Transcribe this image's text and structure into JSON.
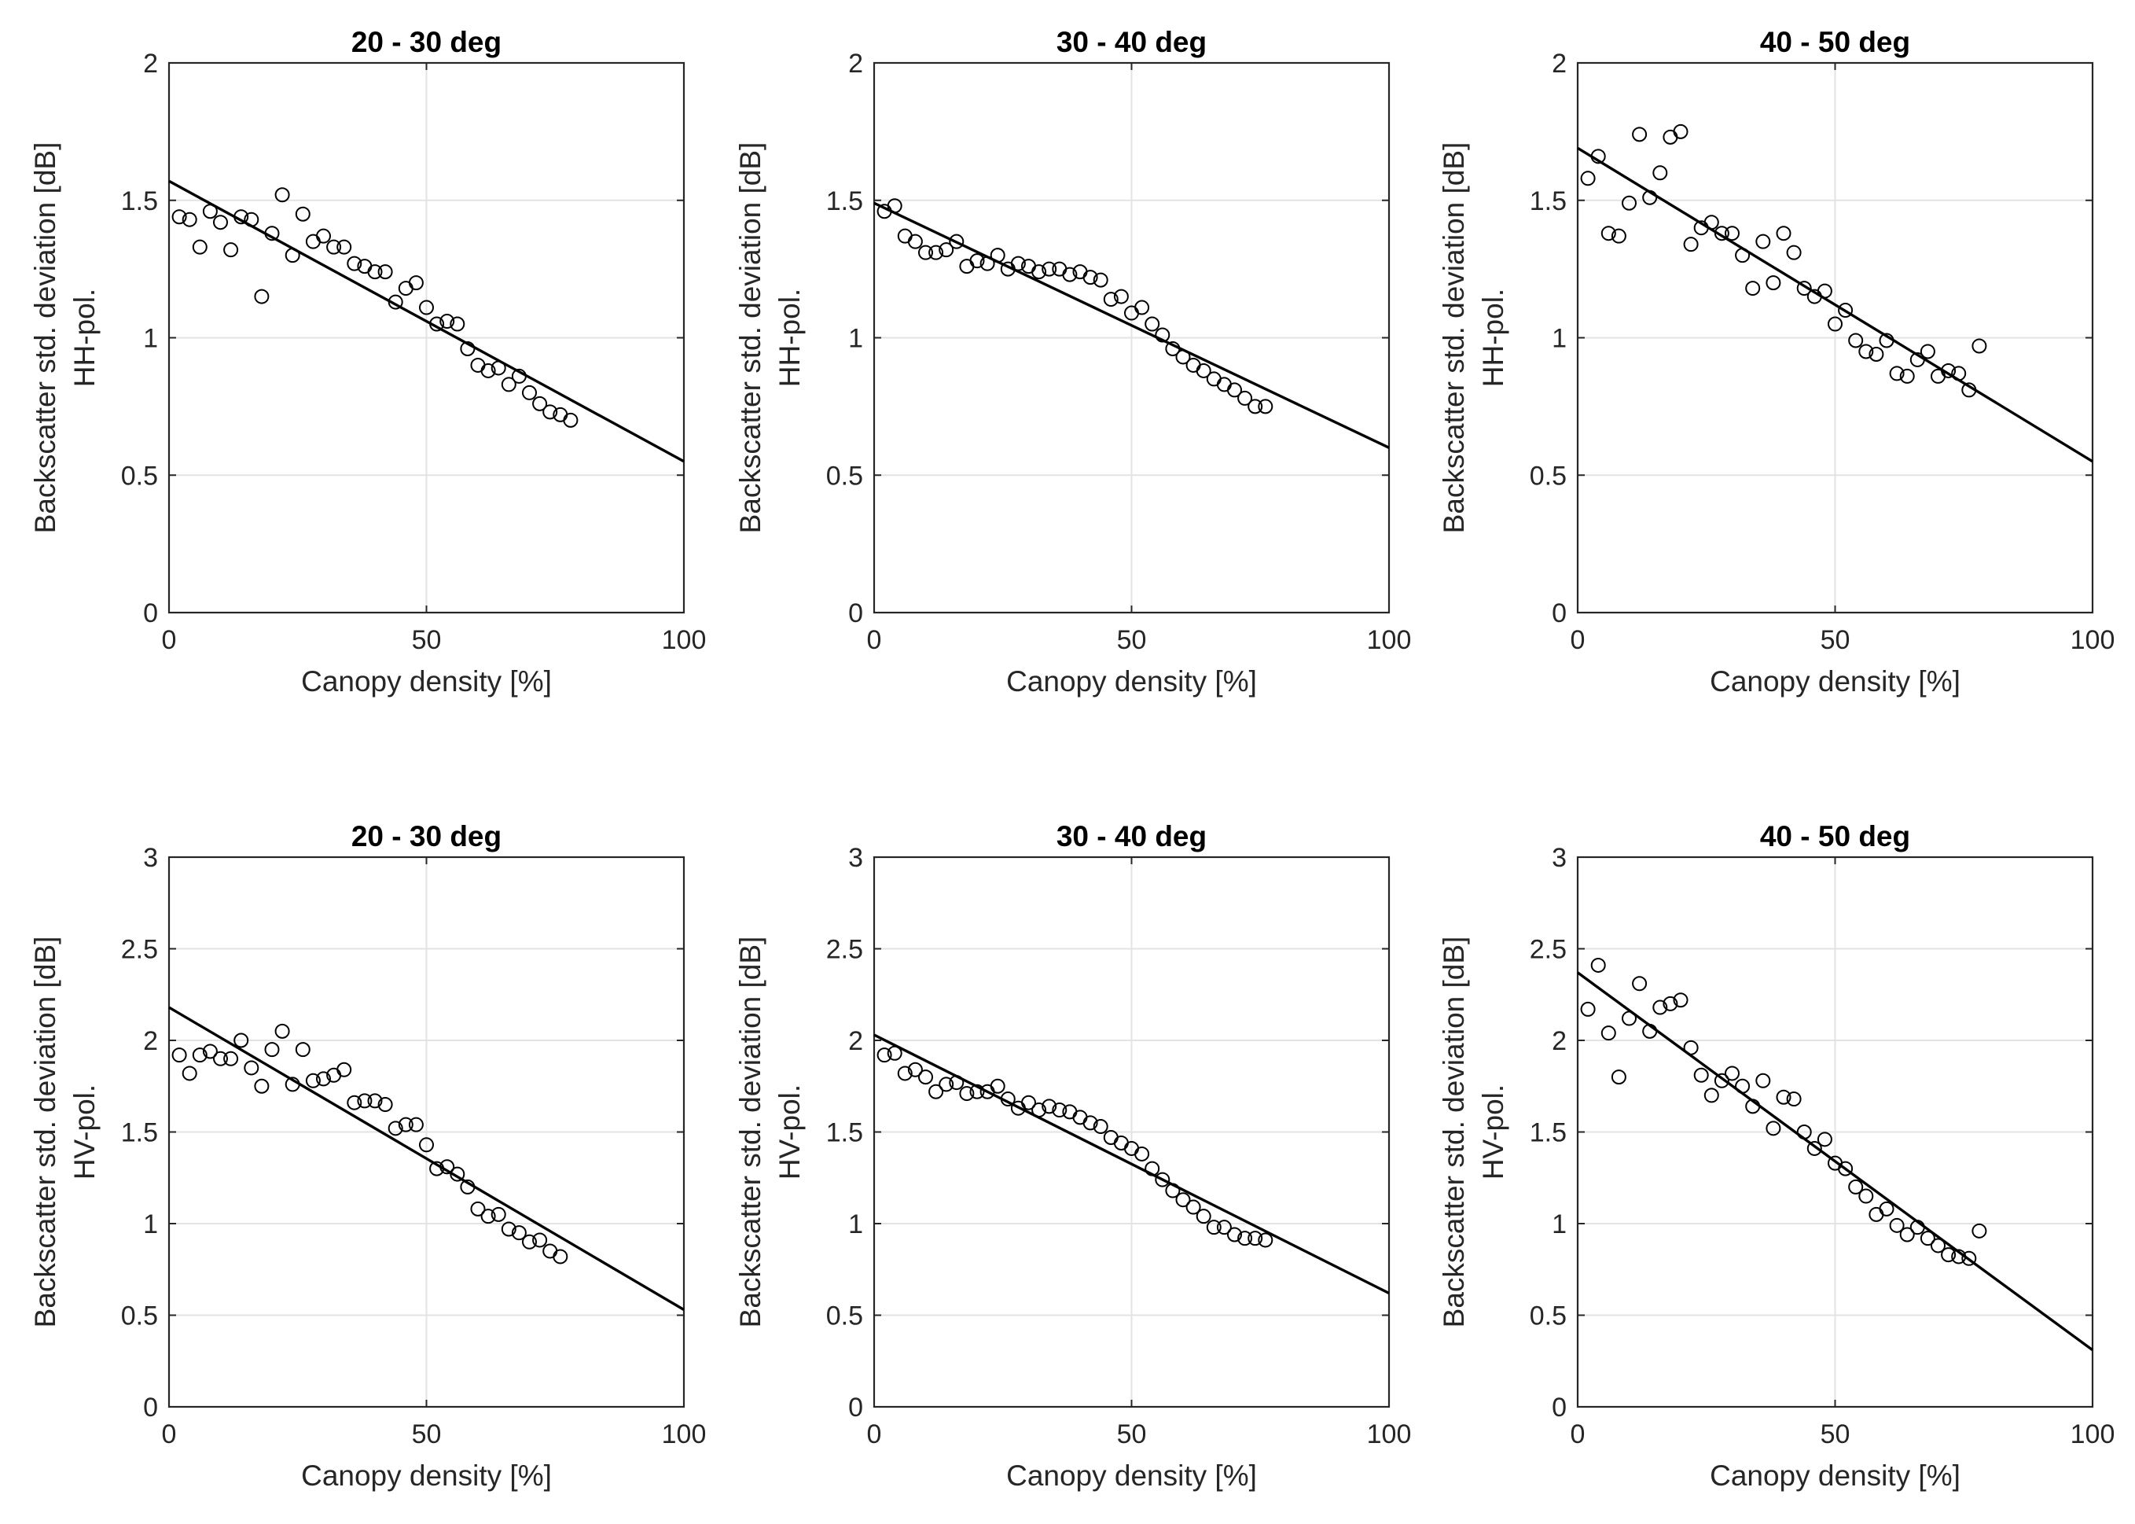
{
  "chart_data": [
    {
      "type": "scatter",
      "title": "20 - 30 deg",
      "xlabel": "Canopy density [%]",
      "ylabel": [
        "Backscatter std. deviation [dB]",
        "HH-pol."
      ],
      "xlim": [
        0,
        100
      ],
      "ylim": [
        0,
        2
      ],
      "xticks": [
        "0",
        "50",
        "100"
      ],
      "yticks": [
        "0",
        "0.5",
        "1",
        "1.5",
        "2"
      ],
      "grid": true,
      "fit_line": {
        "x": [
          0,
          100
        ],
        "y": [
          1.57,
          0.55
        ]
      },
      "x": [
        2,
        4,
        6,
        8,
        10,
        12,
        14,
        16,
        18,
        20,
        22,
        24,
        26,
        28,
        30,
        32,
        34,
        36,
        38,
        40,
        42,
        44,
        46,
        48,
        50,
        52,
        54,
        56,
        58,
        60,
        62,
        64,
        66,
        68,
        70,
        72,
        74,
        76,
        78
      ],
      "y": [
        1.44,
        1.43,
        1.33,
        1.46,
        1.42,
        1.32,
        1.44,
        1.43,
        1.15,
        1.38,
        1.52,
        1.3,
        1.45,
        1.35,
        1.37,
        1.33,
        1.33,
        1.27,
        1.26,
        1.24,
        1.24,
        1.13,
        1.18,
        1.2,
        1.11,
        1.05,
        1.06,
        1.05,
        0.96,
        0.9,
        0.88,
        0.89,
        0.83,
        0.86,
        0.8,
        0.76,
        0.73,
        0.72,
        0.7
      ]
    },
    {
      "type": "scatter",
      "title": "30 - 40 deg",
      "xlabel": "Canopy density [%]",
      "ylabel": [
        "Backscatter std. deviation [dB]",
        "HH-pol."
      ],
      "xlim": [
        0,
        100
      ],
      "ylim": [
        0,
        2
      ],
      "xticks": [
        "0",
        "50",
        "100"
      ],
      "yticks": [
        "0",
        "0.5",
        "1",
        "1.5",
        "2"
      ],
      "grid": true,
      "fit_line": {
        "x": [
          0,
          100
        ],
        "y": [
          1.49,
          0.6
        ]
      },
      "x": [
        2,
        4,
        6,
        8,
        10,
        12,
        14,
        16,
        18,
        20,
        22,
        24,
        26,
        28,
        30,
        32,
        34,
        36,
        38,
        40,
        42,
        44,
        46,
        48,
        50,
        52,
        54,
        56,
        58,
        60,
        62,
        64,
        66,
        68,
        70,
        72,
        74,
        76
      ],
      "y": [
        1.46,
        1.48,
        1.37,
        1.35,
        1.31,
        1.31,
        1.32,
        1.35,
        1.26,
        1.28,
        1.27,
        1.3,
        1.25,
        1.27,
        1.26,
        1.24,
        1.25,
        1.25,
        1.23,
        1.24,
        1.22,
        1.21,
        1.14,
        1.15,
        1.09,
        1.11,
        1.05,
        1.01,
        0.96,
        0.93,
        0.9,
        0.88,
        0.85,
        0.83,
        0.81,
        0.78,
        0.75,
        0.75
      ]
    },
    {
      "type": "scatter",
      "title": "40 - 50 deg",
      "xlabel": "Canopy density [%]",
      "ylabel": [
        "Backscatter std. deviation [dB]",
        "HH-pol."
      ],
      "xlim": [
        0,
        100
      ],
      "ylim": [
        0,
        2
      ],
      "xticks": [
        "0",
        "50",
        "100"
      ],
      "yticks": [
        "0",
        "0.5",
        "1",
        "1.5",
        "2"
      ],
      "grid": true,
      "fit_line": {
        "x": [
          0,
          100
        ],
        "y": [
          1.69,
          0.55
        ]
      },
      "x": [
        2,
        4,
        6,
        8,
        10,
        12,
        14,
        16,
        18,
        20,
        22,
        24,
        26,
        28,
        30,
        32,
        34,
        36,
        38,
        40,
        42,
        44,
        46,
        48,
        50,
        52,
        54,
        56,
        58,
        60,
        62,
        64,
        66,
        68,
        70,
        72,
        74,
        76,
        78
      ],
      "y": [
        1.58,
        1.66,
        1.38,
        1.37,
        1.49,
        1.74,
        1.51,
        1.6,
        1.73,
        1.75,
        1.34,
        1.4,
        1.42,
        1.38,
        1.38,
        1.3,
        1.18,
        1.35,
        1.2,
        1.38,
        1.31,
        1.18,
        1.15,
        1.17,
        1.05,
        1.1,
        0.99,
        0.95,
        0.94,
        0.99,
        0.87,
        0.86,
        0.92,
        0.95,
        0.86,
        0.88,
        0.87,
        0.81,
        0.97
      ]
    },
    {
      "type": "scatter",
      "title": "20 - 30 deg",
      "xlabel": "Canopy density [%]",
      "ylabel": [
        "Backscatter std. deviation [dB]",
        "HV-pol."
      ],
      "xlim": [
        0,
        100
      ],
      "ylim": [
        0,
        3
      ],
      "xticks": [
        "0",
        "50",
        "100"
      ],
      "yticks": [
        "0",
        "0.5",
        "1",
        "1.5",
        "2",
        "2.5",
        "3"
      ],
      "grid": true,
      "fit_line": {
        "x": [
          0,
          100
        ],
        "y": [
          2.18,
          0.53
        ]
      },
      "x": [
        2,
        4,
        6,
        8,
        10,
        12,
        14,
        16,
        18,
        20,
        22,
        24,
        26,
        28,
        30,
        32,
        34,
        36,
        38,
        40,
        42,
        44,
        46,
        48,
        50,
        52,
        54,
        56,
        58,
        60,
        62,
        64,
        66,
        68,
        70,
        72,
        74,
        76
      ],
      "y": [
        1.92,
        1.82,
        1.92,
        1.94,
        1.9,
        1.9,
        2.0,
        1.85,
        1.75,
        1.95,
        2.05,
        1.76,
        1.95,
        1.78,
        1.79,
        1.81,
        1.84,
        1.66,
        1.67,
        1.67,
        1.65,
        1.52,
        1.54,
        1.54,
        1.43,
        1.3,
        1.31,
        1.27,
        1.2,
        1.08,
        1.04,
        1.05,
        0.97,
        0.95,
        0.9,
        0.91,
        0.85,
        0.82
      ]
    },
    {
      "type": "scatter",
      "title": "30 - 40 deg",
      "xlabel": "Canopy density [%]",
      "ylabel": [
        "Backscatter std. deviation [dB]",
        "HV-pol."
      ],
      "xlim": [
        0,
        100
      ],
      "ylim": [
        0,
        3
      ],
      "xticks": [
        "0",
        "50",
        "100"
      ],
      "yticks": [
        "0",
        "0.5",
        "1",
        "1.5",
        "2",
        "2.5",
        "3"
      ],
      "grid": true,
      "fit_line": {
        "x": [
          0,
          100
        ],
        "y": [
          2.03,
          0.62
        ]
      },
      "x": [
        2,
        4,
        6,
        8,
        10,
        12,
        14,
        16,
        18,
        20,
        22,
        24,
        26,
        28,
        30,
        32,
        34,
        36,
        38,
        40,
        42,
        44,
        46,
        48,
        50,
        52,
        54,
        56,
        58,
        60,
        62,
        64,
        66,
        68,
        70,
        72,
        74,
        76
      ],
      "y": [
        1.92,
        1.93,
        1.82,
        1.84,
        1.8,
        1.72,
        1.76,
        1.77,
        1.71,
        1.72,
        1.72,
        1.75,
        1.68,
        1.63,
        1.66,
        1.62,
        1.64,
        1.62,
        1.61,
        1.58,
        1.55,
        1.53,
        1.47,
        1.44,
        1.41,
        1.38,
        1.3,
        1.24,
        1.18,
        1.13,
        1.09,
        1.04,
        0.98,
        0.98,
        0.94,
        0.92,
        0.92,
        0.91
      ]
    },
    {
      "type": "scatter",
      "title": "40 - 50 deg",
      "xlabel": "Canopy density [%]",
      "ylabel": [
        "Backscatter std. deviation [dB]",
        "HV-pol."
      ],
      "xlim": [
        0,
        100
      ],
      "ylim": [
        0,
        3
      ],
      "xticks": [
        "0",
        "50",
        "100"
      ],
      "yticks": [
        "0",
        "0.5",
        "1",
        "1.5",
        "2",
        "2.5",
        "3"
      ],
      "grid": true,
      "fit_line": {
        "x": [
          0,
          100
        ],
        "y": [
          2.37,
          0.31
        ]
      },
      "x": [
        2,
        4,
        6,
        8,
        10,
        12,
        14,
        16,
        18,
        20,
        22,
        24,
        26,
        28,
        30,
        32,
        34,
        36,
        38,
        40,
        42,
        44,
        46,
        48,
        50,
        52,
        54,
        56,
        58,
        60,
        62,
        64,
        66,
        68,
        70,
        72,
        74,
        76,
        78
      ],
      "y": [
        2.17,
        2.41,
        2.04,
        1.8,
        2.12,
        2.31,
        2.05,
        2.18,
        2.2,
        2.22,
        1.96,
        1.81,
        1.7,
        1.78,
        1.82,
        1.75,
        1.64,
        1.78,
        1.52,
        1.69,
        1.68,
        1.5,
        1.41,
        1.46,
        1.33,
        1.3,
        1.2,
        1.15,
        1.05,
        1.08,
        0.99,
        0.94,
        0.98,
        0.92,
        0.88,
        0.83,
        0.82,
        0.81,
        0.96
      ]
    }
  ]
}
